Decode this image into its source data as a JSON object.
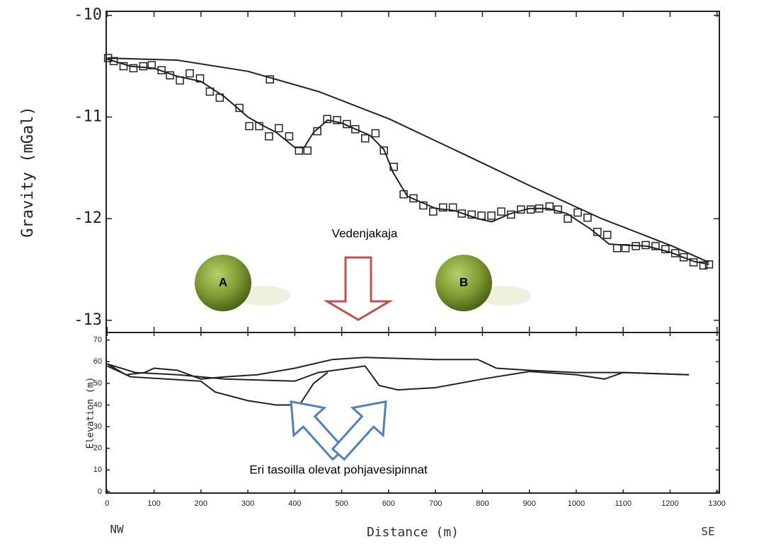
{
  "chart_data": [
    {
      "type": "line",
      "ylabel": "Gravity (mGal)",
      "xlim": [
        -2,
        1305
      ],
      "ylim": [
        -13.12,
        -9.96
      ],
      "yticks": [
        -10,
        -11,
        -12,
        -13
      ],
      "xticks": [
        0,
        100,
        200,
        300,
        400,
        500,
        600,
        700,
        800,
        900,
        1000,
        1100,
        1200,
        1300
      ],
      "xtick_labels": false,
      "annotations": [
        "Vedenjakaja",
        "A",
        "B"
      ],
      "series": [
        {
          "marker": "square",
          "connect": false,
          "color": "#222222",
          "x": [
            2,
            14,
            35,
            56,
            77,
            95,
            116,
            134,
            155,
            176,
            198,
            219,
            240,
            282,
            303,
            324,
            347,
            345,
            366,
            388,
            409,
            427,
            448,
            469,
            490,
            511,
            529,
            550,
            572,
            590,
            611,
            632,
            653,
            674,
            695,
            716,
            737,
            756,
            777,
            798,
            819,
            840,
            861,
            882,
            903,
            921,
            943,
            961,
            982,
            1003,
            1024,
            1045,
            1066,
            1087,
            1105,
            1127,
            1148,
            1169,
            1190,
            1211,
            1229,
            1250,
            1271,
            1283
          ],
          "values": [
            -10.42,
            -10.45,
            -10.5,
            -10.52,
            -10.5,
            -10.49,
            -10.54,
            -10.59,
            -10.64,
            -10.57,
            -10.62,
            -10.75,
            -10.81,
            -10.91,
            -11.09,
            -11.09,
            -10.63,
            -11.19,
            -11.11,
            -11.19,
            -11.33,
            -11.33,
            -11.14,
            -11.02,
            -11.03,
            -11.07,
            -11.12,
            -11.21,
            -11.16,
            -11.33,
            -11.49,
            -11.76,
            -11.8,
            -11.87,
            -11.93,
            -11.89,
            -11.89,
            -11.95,
            -11.96,
            -11.97,
            -11.97,
            -11.93,
            -11.96,
            -11.91,
            -11.91,
            -11.9,
            -11.88,
            -11.91,
            -12.0,
            -11.94,
            -11.99,
            -12.13,
            -12.16,
            -12.29,
            -12.29,
            -12.27,
            -12.26,
            -12.27,
            -12.3,
            -12.34,
            -12.38,
            -12.43,
            -12.46,
            -12.45
          ]
        },
        {
          "connect": true,
          "color": "#222222",
          "x": [
            0,
            50,
            100,
            150,
            200,
            250,
            300,
            330,
            360,
            400,
            420,
            440,
            470,
            500,
            530,
            560,
            590,
            610,
            640,
            700,
            740,
            790,
            820,
            860,
            900,
            940,
            980,
            1030,
            1070,
            1100,
            1150,
            1200,
            1250,
            1283
          ],
          "values": [
            -10.43,
            -10.5,
            -10.52,
            -10.6,
            -10.65,
            -10.8,
            -11.0,
            -11.08,
            -11.15,
            -11.3,
            -11.3,
            -11.15,
            -11.03,
            -11.06,
            -11.12,
            -11.18,
            -11.32,
            -11.55,
            -11.78,
            -11.9,
            -11.92,
            -12.0,
            -12.03,
            -11.95,
            -11.9,
            -11.9,
            -11.95,
            -12.1,
            -12.25,
            -12.26,
            -12.27,
            -12.33,
            -12.42,
            -12.45
          ]
        },
        {
          "connect": true,
          "color": "#222222",
          "x": [
            0,
            149,
            300,
            451,
            602,
            753,
            903,
            1054,
            1205,
            1283
          ],
          "values": [
            -10.42,
            -10.44,
            -10.55,
            -10.75,
            -11.02,
            -11.35,
            -11.68,
            -12.0,
            -12.27,
            -12.43
          ]
        }
      ]
    },
    {
      "type": "line",
      "ylabel": "Elevation (m)",
      "xlabel": "Distance (m)",
      "xlim": [
        -2,
        1305
      ],
      "ylim": [
        -0.7,
        73.5
      ],
      "yticks": [
        0,
        10,
        20,
        30,
        40,
        50,
        60,
        70
      ],
      "xticks": [
        0,
        100,
        200,
        300,
        400,
        500,
        600,
        700,
        800,
        900,
        1000,
        1100,
        1200,
        1300
      ],
      "xtick_labels": true,
      "direction_labels": [
        "NW",
        "SE"
      ],
      "annotations": [
        "Eri tasoilla olevat pohjavesipinnat"
      ],
      "series": [
        {
          "connect": true,
          "color": "#222222",
          "x": [
            0,
            40,
            80,
            100,
            150,
            200,
            250,
            320,
            400,
            480,
            550,
            700,
            790,
            830,
            900,
            1000,
            1100,
            1240
          ],
          "values": [
            59,
            54,
            55,
            57,
            56,
            52,
            53,
            54,
            57,
            61,
            62,
            61,
            61,
            57,
            56,
            55,
            55,
            54
          ]
        },
        {
          "connect": true,
          "color": "#222222",
          "x": [
            0,
            60,
            150,
            250,
            400,
            450,
            550,
            580,
            620,
            700,
            800,
            900,
            1000,
            1060,
            1100,
            1240
          ],
          "values": [
            59,
            55,
            54,
            52,
            51,
            55,
            58,
            49,
            47,
            48,
            52,
            55.5,
            54,
            52,
            55,
            54
          ]
        },
        {
          "connect": true,
          "color": "#222222",
          "x": [
            0,
            50,
            200,
            230,
            300,
            360,
            410,
            440,
            470
          ],
          "values": [
            58,
            53,
            51,
            46,
            42,
            40,
            40,
            50,
            55
          ]
        }
      ]
    }
  ]
}
